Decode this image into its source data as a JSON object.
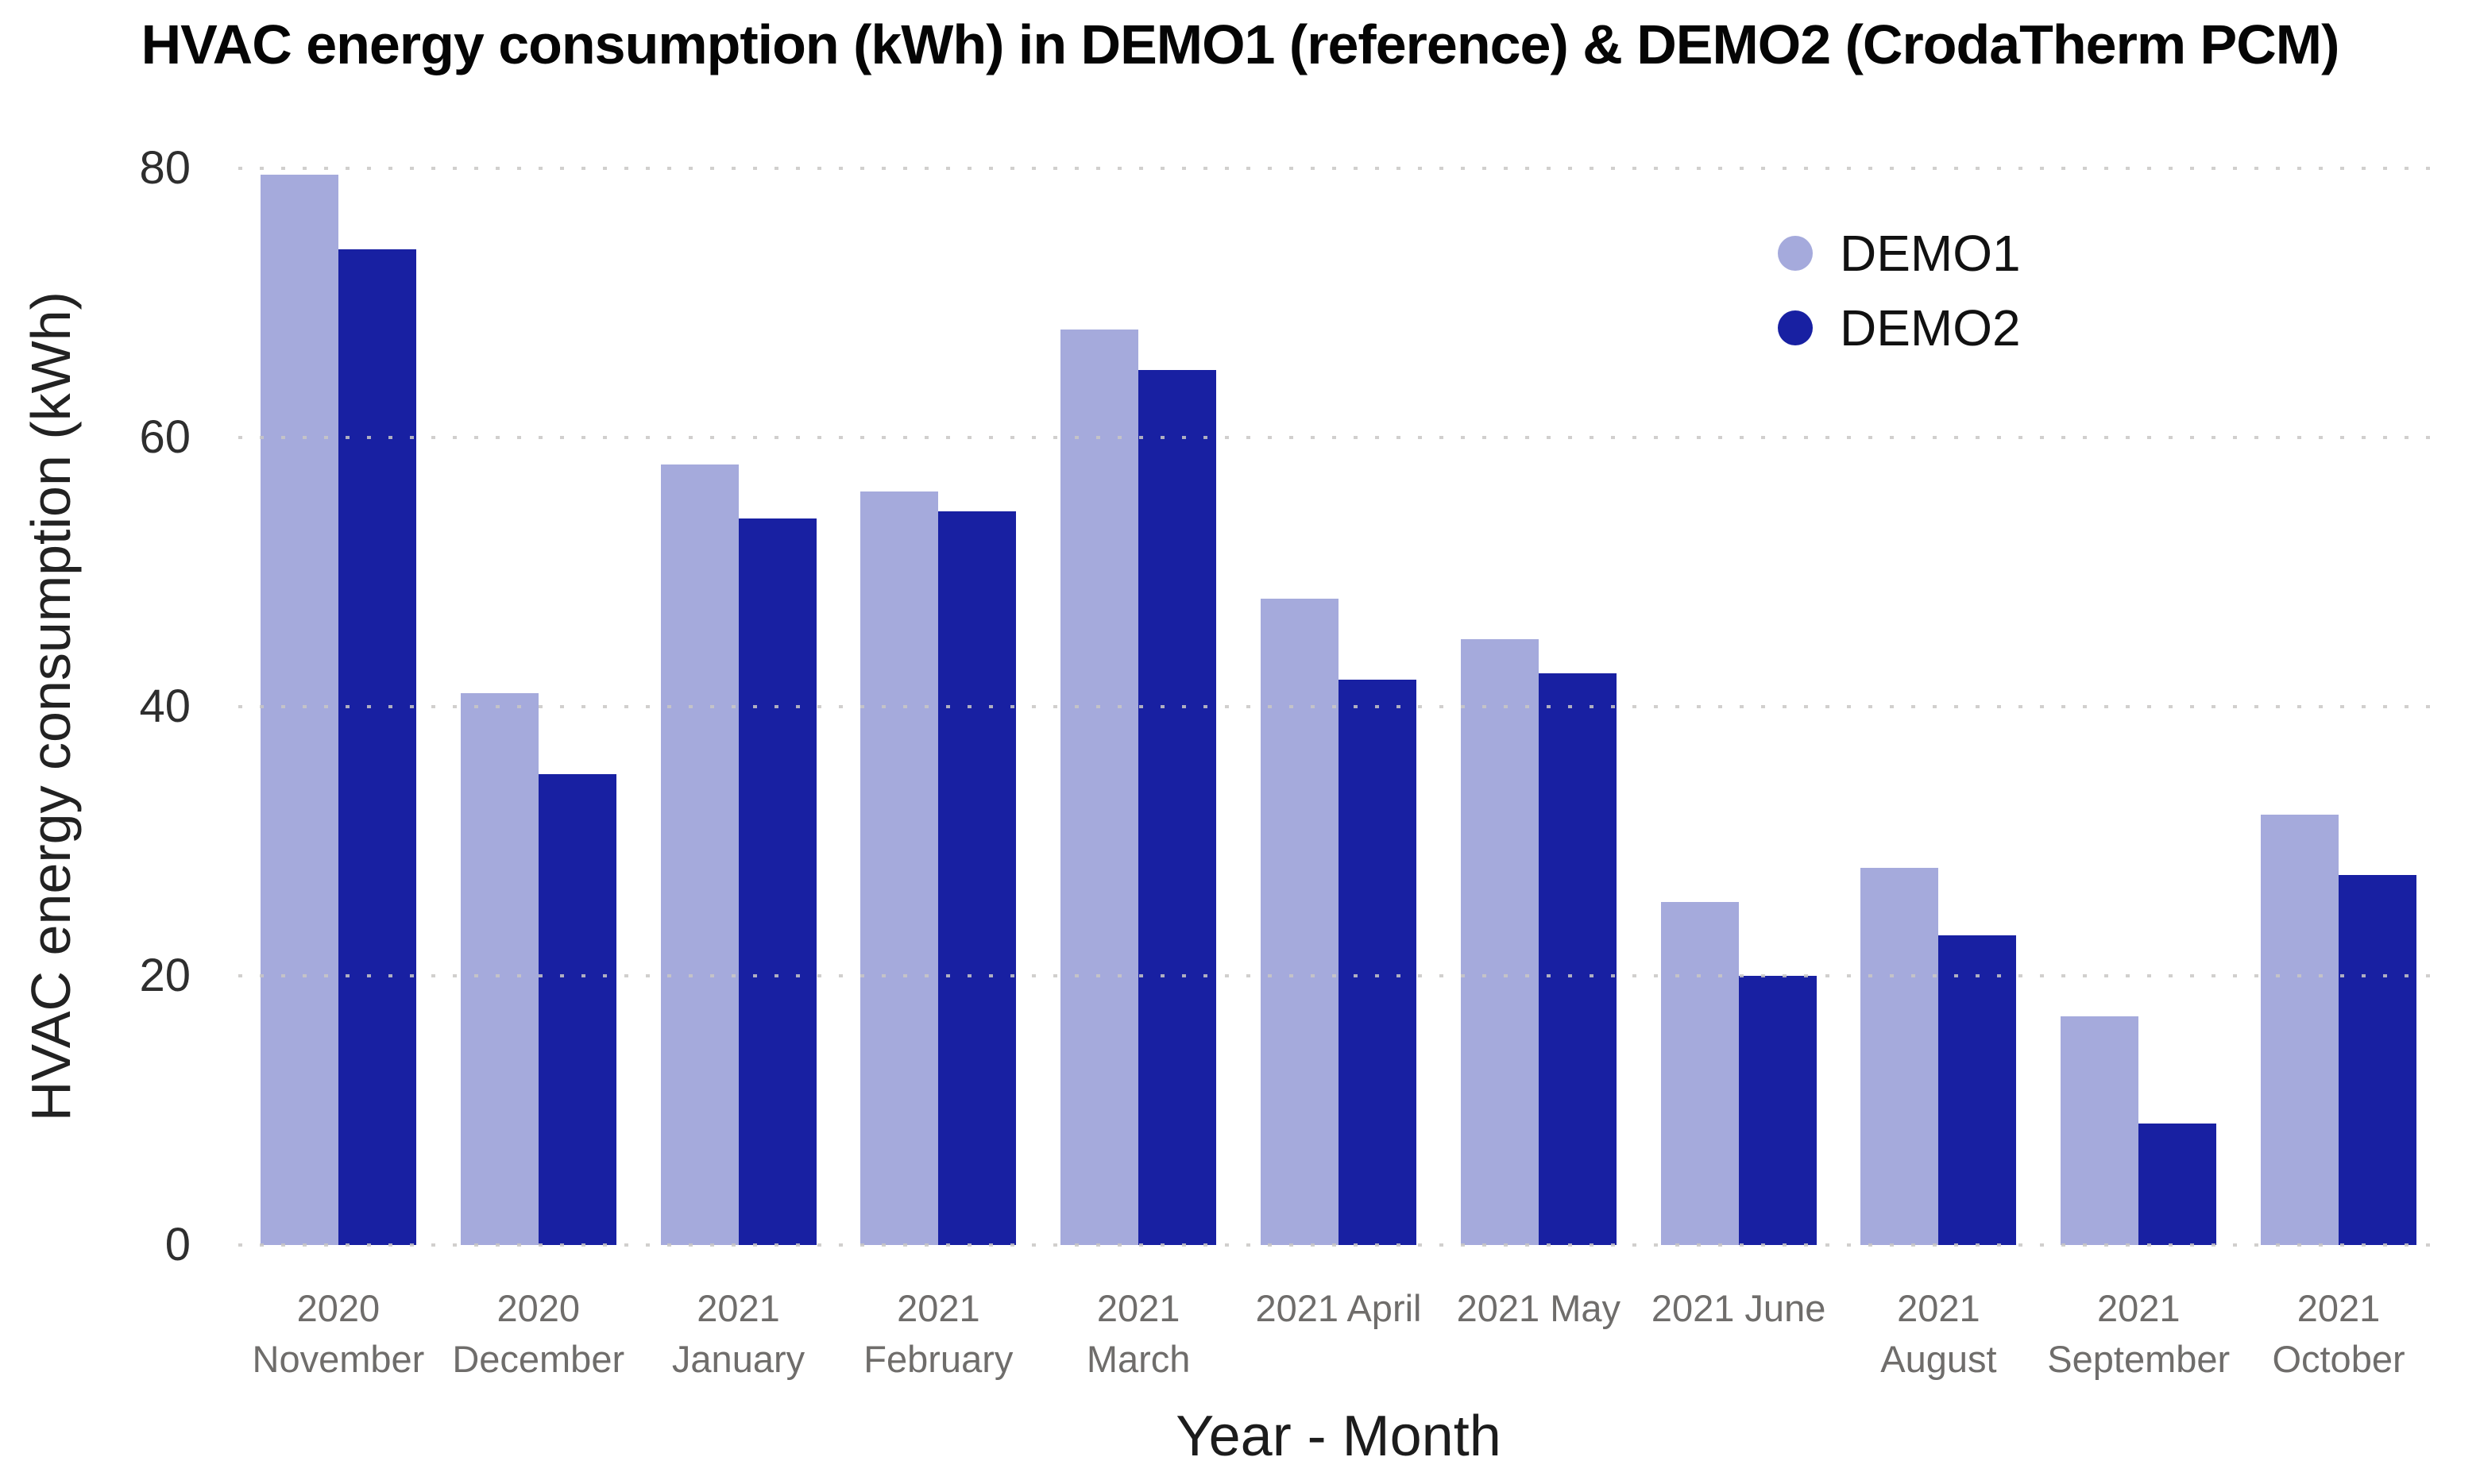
{
  "title": "HVAC energy consumption (kWh) in DEMO1 (reference) & DEMO2 (CrodaTherm PCM)",
  "chart_data": {
    "type": "bar",
    "title": "HVAC energy consumption (kWh) in DEMO1 (reference) & DEMO2 (CrodaTherm PCM)",
    "xlabel": "Year - Month",
    "ylabel": "HVAC energy consumption (kWh)",
    "ylim": [
      0,
      80
    ],
    "yticks": [
      0,
      20,
      40,
      60,
      80
    ],
    "grid": "horizontal-dotted",
    "grid_color": "#c9c7c5",
    "legend_position": "top-right",
    "categories": [
      "2020 November",
      "2020 December",
      "2021 January",
      "2021 February",
      "2021 March",
      "2021 April",
      "2021 May",
      "2021 June",
      "2021 August",
      "2021 September",
      "2021 October"
    ],
    "category_label_lines": [
      [
        "2020",
        "November"
      ],
      [
        "2020",
        "December"
      ],
      [
        "2021",
        "January"
      ],
      [
        "2021",
        "February"
      ],
      [
        "2021",
        "March"
      ],
      [
        "2021 April"
      ],
      [
        "2021 May"
      ],
      [
        "2021 June"
      ],
      [
        "2021",
        "August"
      ],
      [
        "2021",
        "September"
      ],
      [
        "2021",
        "October"
      ]
    ],
    "series": [
      {
        "name": "DEMO1",
        "color": "#a5aadc",
        "values": [
          79.5,
          41,
          58,
          56,
          68,
          48,
          45,
          25.5,
          28,
          17,
          32
        ]
      },
      {
        "name": "DEMO2",
        "color": "#1820a2",
        "values": [
          74,
          35,
          54,
          54.5,
          65,
          42,
          42.5,
          20,
          23,
          9,
          27.5
        ]
      }
    ]
  }
}
